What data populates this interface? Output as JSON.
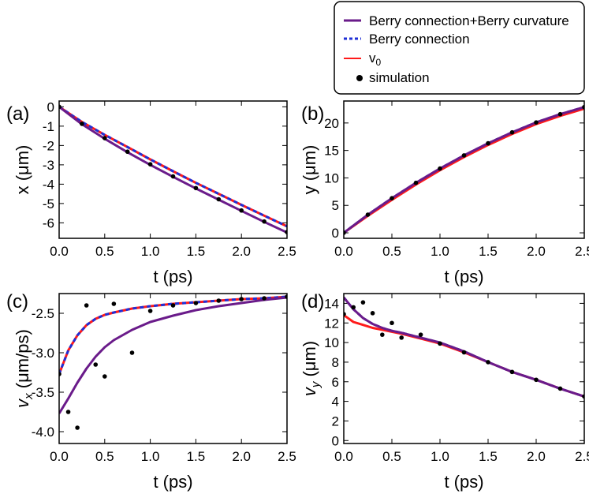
{
  "legend": {
    "entries": [
      {
        "label": "Berry connection+Berry curvature",
        "color": "#6a1b8a",
        "style": "solid"
      },
      {
        "label": "Berry connection",
        "color": "#1f2fd6",
        "style": "dashed"
      },
      {
        "label": "v",
        "sub": "0",
        "color": "#ff1a1a",
        "style": "solid"
      },
      {
        "label": "simulation",
        "color": "#000000",
        "style": "dot"
      }
    ]
  },
  "chart_data": [
    {
      "id": "a",
      "type": "line",
      "panel_label": "(a)",
      "xlabel": "t (ps)",
      "ylabel": "x (μm)",
      "xlim": [
        0,
        2.5
      ],
      "ylim": [
        -6.8,
        0.3
      ],
      "xticks": [
        "0.0",
        "0.5",
        "1.0",
        "1.5",
        "2.0",
        "2.5"
      ],
      "yticks": [
        "0",
        "-1",
        "-2",
        "-3",
        "-4",
        "-5",
        "-6"
      ],
      "x": [
        0,
        0.25,
        0.5,
        0.75,
        1.0,
        1.25,
        1.5,
        1.75,
        2.0,
        2.25,
        2.5
      ],
      "series": [
        {
          "name": "Berry connection+Berry curvature",
          "values": [
            0,
            -0.9,
            -1.65,
            -2.35,
            -3.0,
            -3.62,
            -4.22,
            -4.8,
            -5.38,
            -5.95,
            -6.5
          ]
        },
        {
          "name": "Berry connection",
          "values": [
            0,
            -0.78,
            -1.45,
            -2.08,
            -2.72,
            -3.33,
            -3.93,
            -4.5,
            -5.07,
            -5.63,
            -6.18
          ]
        },
        {
          "name": "v0",
          "values": [
            0,
            -0.78,
            -1.45,
            -2.08,
            -2.72,
            -3.33,
            -3.93,
            -4.5,
            -5.07,
            -5.63,
            -6.18
          ]
        },
        {
          "name": "simulation",
          "values": [
            0,
            -0.88,
            -1.62,
            -2.32,
            -2.97,
            -3.6,
            -4.2,
            -4.78,
            -5.36,
            -5.93,
            -6.48
          ]
        }
      ]
    },
    {
      "id": "b",
      "type": "line",
      "panel_label": "(b)",
      "xlabel": "t (ps)",
      "ylabel": "y (μm)",
      "xlim": [
        0,
        2.5
      ],
      "ylim": [
        -1,
        24
      ],
      "xticks": [
        "0.0",
        "0.5",
        "1.0",
        "1.5",
        "2.0",
        "2.5"
      ],
      "yticks": [
        "0",
        "5",
        "10",
        "15",
        "20"
      ],
      "x": [
        0,
        0.25,
        0.5,
        0.75,
        1.0,
        1.25,
        1.5,
        1.75,
        2.0,
        2.25,
        2.5
      ],
      "series": [
        {
          "name": "Berry connection+Berry curvature",
          "values": [
            0,
            3.3,
            6.3,
            9.1,
            11.7,
            14.1,
            16.3,
            18.3,
            20.1,
            21.6,
            22.9
          ]
        },
        {
          "name": "Berry connection",
          "values": [
            0,
            3.3,
            6.3,
            9.1,
            11.7,
            14.1,
            16.3,
            18.3,
            20.1,
            21.6,
            22.9
          ]
        },
        {
          "name": "v0",
          "values": [
            0,
            3.1,
            6.0,
            8.8,
            11.4,
            13.8,
            16.0,
            18.0,
            19.8,
            21.3,
            22.6
          ]
        },
        {
          "name": "simulation",
          "values": [
            0,
            3.3,
            6.3,
            9.1,
            11.7,
            14.1,
            16.3,
            18.3,
            20.1,
            21.6,
            22.9
          ]
        }
      ]
    },
    {
      "id": "c",
      "type": "line",
      "panel_label": "(c)",
      "xlabel": "t (ps)",
      "ylabel": "v_x (μm/ps)",
      "xlim": [
        0,
        2.5
      ],
      "ylim": [
        -4.15,
        -2.25
      ],
      "xticks": [
        "0.0",
        "0.5",
        "1.0",
        "1.5",
        "2.0",
        "2.5"
      ],
      "yticks": [
        "-2.5",
        "-3.0",
        "-3.5",
        "-4.0"
      ],
      "x": [
        0,
        0.1,
        0.2,
        0.3,
        0.4,
        0.5,
        0.6,
        0.8,
        1.0,
        1.25,
        1.5,
        1.75,
        2.0,
        2.25,
        2.5
      ],
      "series": [
        {
          "name": "Berry connection+Berry curvature",
          "values": [
            -3.77,
            -3.58,
            -3.38,
            -3.2,
            -3.05,
            -2.93,
            -2.84,
            -2.71,
            -2.61,
            -2.53,
            -2.46,
            -2.41,
            -2.37,
            -2.33,
            -2.3
          ]
        },
        {
          "name": "Berry connection",
          "values": [
            -3.27,
            -2.97,
            -2.78,
            -2.65,
            -2.57,
            -2.52,
            -2.49,
            -2.44,
            -2.41,
            -2.38,
            -2.36,
            -2.34,
            -2.32,
            -2.31,
            -2.29
          ]
        },
        {
          "name": "v0",
          "values": [
            -3.27,
            -2.97,
            -2.78,
            -2.65,
            -2.57,
            -2.52,
            -2.49,
            -2.44,
            -2.41,
            -2.38,
            -2.36,
            -2.34,
            -2.32,
            -2.31,
            -2.29
          ]
        },
        {
          "name": "simulation",
          "values": [
            -3.27,
            -3.75,
            -3.95,
            -2.4,
            -3.15,
            -3.3,
            -2.38,
            -3.0,
            -2.47,
            -2.4,
            -2.37,
            -2.34,
            -2.32,
            -2.31,
            -2.29
          ]
        }
      ]
    },
    {
      "id": "d",
      "type": "line",
      "panel_label": "(d)",
      "xlabel": "t (ps)",
      "ylabel": "v_y (μm)",
      "xlim": [
        0,
        2.5
      ],
      "ylim": [
        -0.3,
        15
      ],
      "xticks": [
        "0.0",
        "0.5",
        "1.0",
        "1.5",
        "2.0",
        "2.5"
      ],
      "yticks": [
        "0",
        "2",
        "4",
        "6",
        "8",
        "10",
        "12",
        "14"
      ],
      "x": [
        0,
        0.1,
        0.2,
        0.3,
        0.4,
        0.5,
        0.6,
        0.8,
        1.0,
        1.25,
        1.5,
        1.75,
        2.0,
        2.25,
        2.5
      ],
      "series": [
        {
          "name": "Berry connection+Berry curvature",
          "values": [
            14.6,
            13.4,
            12.5,
            11.9,
            11.5,
            11.2,
            11.0,
            10.5,
            10.0,
            9.1,
            8.0,
            7.0,
            6.2,
            5.3,
            4.5
          ]
        },
        {
          "name": "Berry connection",
          "values": [
            14.6,
            13.4,
            12.5,
            11.9,
            11.5,
            11.2,
            11.0,
            10.5,
            10.0,
            9.1,
            8.0,
            7.0,
            6.2,
            5.3,
            4.5
          ]
        },
        {
          "name": "v0",
          "values": [
            12.8,
            12.1,
            11.8,
            11.5,
            11.3,
            11.1,
            10.9,
            10.4,
            9.9,
            9.0,
            8.0,
            7.0,
            6.2,
            5.3,
            4.5
          ]
        },
        {
          "name": "simulation",
          "values": [
            12.9,
            13.6,
            14.1,
            13.0,
            10.8,
            12.0,
            10.5,
            10.8,
            9.9,
            9.0,
            8.0,
            7.0,
            6.2,
            5.3,
            4.5
          ]
        }
      ]
    }
  ]
}
